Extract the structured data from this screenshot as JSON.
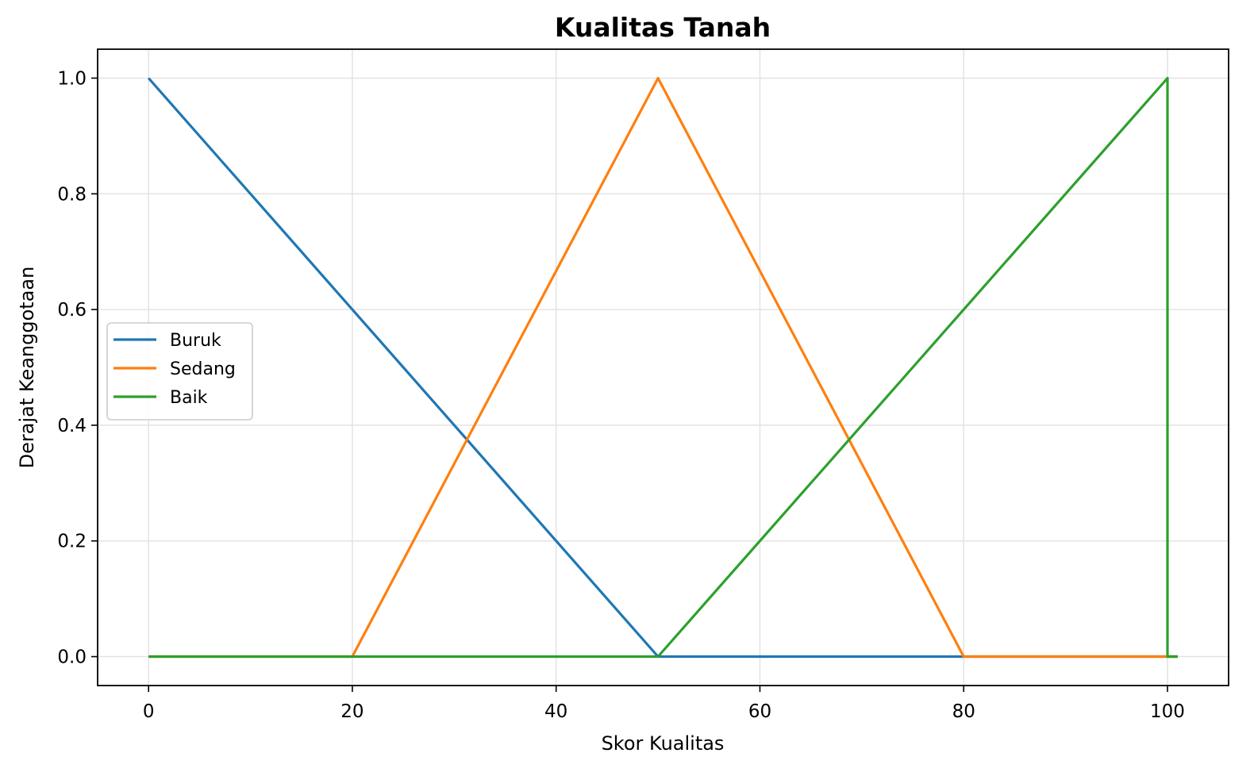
{
  "chart_data": {
    "type": "line",
    "title": "Kualitas Tanah",
    "xlabel": "Skor Kualitas",
    "ylabel": "Derajat Keanggotaan",
    "xlim": [
      -5,
      106
    ],
    "ylim": [
      -0.05,
      1.05
    ],
    "xticks": [
      0,
      20,
      40,
      60,
      80,
      100
    ],
    "xtick_labels": [
      "0",
      "20",
      "40",
      "60",
      "80",
      "100"
    ],
    "yticks": [
      0.0,
      0.2,
      0.4,
      0.6,
      0.8,
      1.0
    ],
    "ytick_labels": [
      "0.0",
      "0.2",
      "0.4",
      "0.6",
      "0.8",
      "1.0"
    ],
    "grid": true,
    "legend_position": "center-left",
    "series": [
      {
        "name": "Buruk",
        "color": "#1f77b4",
        "x": [
          0,
          50,
          101
        ],
        "y": [
          1,
          0,
          0
        ]
      },
      {
        "name": "Sedang",
        "color": "#ff7f0e",
        "x": [
          0,
          20,
          50,
          80,
          101
        ],
        "y": [
          0,
          0,
          1,
          0,
          0
        ]
      },
      {
        "name": "Baik",
        "color": "#2ca02c",
        "x": [
          0,
          50,
          100,
          100,
          101
        ],
        "y": [
          0,
          0,
          1,
          0,
          0
        ]
      }
    ]
  }
}
